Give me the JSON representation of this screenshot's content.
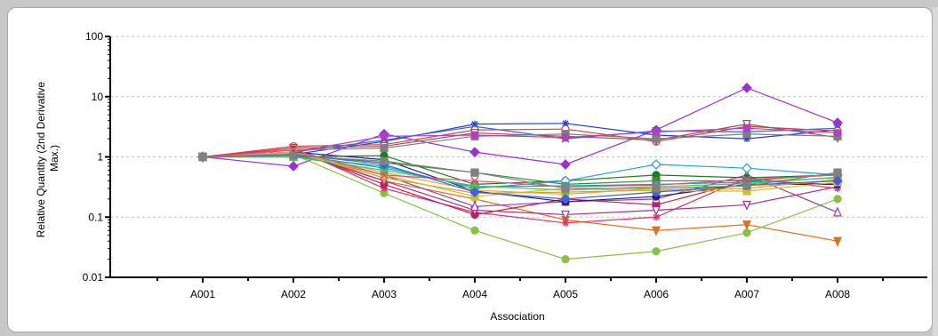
{
  "chart_data": {
    "type": "line",
    "xlabel": "Association",
    "ylabel_lines": [
      "Relative Quantity (2nd Derivative",
      "Max.)"
    ],
    "y_scale": "log",
    "ylim": [
      0.01,
      100
    ],
    "y_ticks": [
      "100",
      "10",
      "1",
      "0.1",
      "0.01"
    ],
    "y_tick_values": [
      100,
      10,
      1,
      0.1,
      0.01
    ],
    "categories": [
      "A001",
      "A002",
      "A003",
      "A004",
      "A005",
      "A006",
      "A007",
      "A008"
    ],
    "grid": "horizontal dashed",
    "series": [
      {
        "color": "#9b30d9",
        "marker": "diamond",
        "values": [
          1.0,
          0.7,
          2.4,
          1.2,
          0.75,
          2.8,
          14,
          3.7
        ]
      },
      {
        "color": "#1f3fd8",
        "marker": "star",
        "values": [
          1.0,
          1.1,
          1.8,
          3.5,
          3.6,
          2.3,
          2.0,
          2.8
        ]
      },
      {
        "color": "#2a6ad8",
        "marker": "x",
        "values": [
          1.0,
          1.2,
          1.9,
          3.2,
          2.0,
          2.7,
          2.6,
          3.0
        ]
      },
      {
        "color": "#d04040",
        "marker": "circle-open",
        "values": [
          1.0,
          1.5,
          1.6,
          2.8,
          2.9,
          1.8,
          3.2,
          2.7
        ]
      },
      {
        "color": "#a05050",
        "marker": "triangle-down-open",
        "values": [
          1.0,
          1.4,
          1.5,
          2.5,
          2.2,
          1.9,
          3.5,
          2.1
        ]
      },
      {
        "color": "#7f7f7f",
        "marker": "square",
        "values": [
          1.0,
          1.3,
          1.4,
          2.2,
          2.4,
          2.0,
          2.4,
          2.2
        ]
      },
      {
        "color": "#b040c0",
        "marker": "circle",
        "values": [
          1.0,
          1.2,
          2.2,
          2.3,
          2.1,
          2.6,
          3.0,
          2.5
        ]
      },
      {
        "color": "#e07020",
        "marker": "triangle-down",
        "values": [
          1.0,
          1.3,
          0.4,
          0.2,
          0.09,
          0.06,
          0.075,
          0.04
        ]
      },
      {
        "color": "#88c040",
        "marker": "circle",
        "values": [
          1.0,
          1.1,
          0.25,
          0.06,
          0.02,
          0.027,
          0.055,
          0.2
        ]
      },
      {
        "color": "#e03060",
        "marker": "star",
        "values": [
          1.0,
          1.4,
          0.3,
          0.12,
          0.08,
          0.1,
          0.45,
          0.3
        ]
      },
      {
        "color": "#c02050",
        "marker": "circle",
        "values": [
          1.0,
          1.3,
          0.35,
          0.11,
          0.2,
          0.16,
          0.4,
          0.35
        ]
      },
      {
        "color": "#a03090",
        "marker": "triangle-down-open",
        "values": [
          1.0,
          1.2,
          0.4,
          0.13,
          0.11,
          0.13,
          0.16,
          0.32
        ]
      },
      {
        "color": "#9040b0",
        "marker": "triangle-open",
        "values": [
          1.0,
          1.1,
          0.5,
          0.15,
          0.18,
          0.2,
          0.5,
          0.12
        ]
      },
      {
        "color": "#202080",
        "marker": "circle",
        "values": [
          1.0,
          1.2,
          0.9,
          0.27,
          0.18,
          0.22,
          0.35,
          0.35
        ]
      },
      {
        "color": "#1a7f1a",
        "marker": "circle",
        "values": [
          1.0,
          1.0,
          1.05,
          0.35,
          0.4,
          0.5,
          0.45,
          0.5
        ]
      },
      {
        "color": "#3a8a3a",
        "marker": "square",
        "values": [
          1.0,
          1.1,
          0.8,
          0.55,
          0.35,
          0.4,
          0.4,
          0.52
        ]
      },
      {
        "color": "#20a0d0",
        "marker": "diamond-open",
        "values": [
          1.0,
          1.0,
          0.7,
          0.3,
          0.4,
          0.75,
          0.65,
          0.5
        ]
      },
      {
        "color": "#00b0a0",
        "marker": "circle",
        "values": [
          1.0,
          1.1,
          0.65,
          0.32,
          0.33,
          0.35,
          0.38,
          0.45
        ]
      },
      {
        "color": "#d0a020",
        "marker": "triangle-down",
        "values": [
          1.0,
          1.2,
          0.45,
          0.25,
          0.26,
          0.28,
          0.3,
          0.42
        ]
      },
      {
        "color": "#c8c030",
        "marker": "square",
        "values": [
          1.0,
          1.15,
          0.5,
          0.22,
          0.3,
          0.27,
          0.27,
          0.38
        ]
      },
      {
        "color": "#f0a030",
        "marker": "circle",
        "values": [
          1.0,
          1.2,
          0.55,
          0.28,
          0.24,
          0.3,
          0.33,
          0.4
        ]
      },
      {
        "color": "#50c050",
        "marker": "triangle",
        "values": [
          1.0,
          1.0,
          0.6,
          0.33,
          0.28,
          0.32,
          0.36,
          0.46
        ]
      },
      {
        "color": "#e05080",
        "marker": "x",
        "values": [
          1.0,
          1.3,
          0.5,
          0.4,
          0.32,
          0.34,
          0.42,
          0.5
        ]
      },
      {
        "color": "#4060e0",
        "marker": "diamond",
        "values": [
          1.0,
          1.1,
          0.75,
          0.26,
          0.2,
          0.26,
          0.34,
          0.4
        ]
      },
      {
        "color": "#808080",
        "marker": "square",
        "values": [
          1.0,
          1.05,
          0.85,
          0.55,
          0.3,
          0.3,
          0.33,
          0.55
        ]
      }
    ]
  }
}
